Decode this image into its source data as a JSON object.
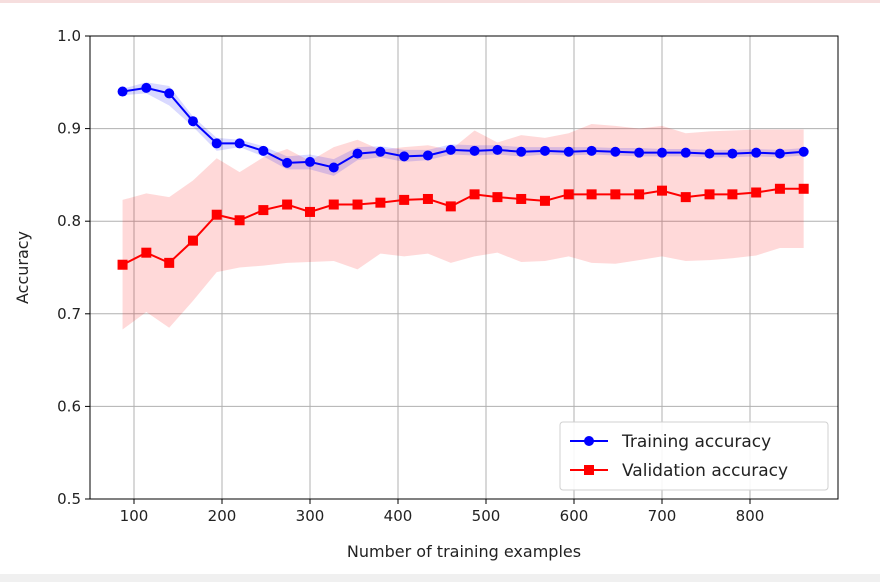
{
  "chart_data": {
    "type": "line",
    "title": "",
    "xlabel": "Number of training examples",
    "ylabel": "Accuracy",
    "xlim": [
      50,
      900
    ],
    "ylim": [
      0.5,
      1.0
    ],
    "xticks": [
      100,
      200,
      300,
      400,
      500,
      600,
      700,
      800
    ],
    "yticks": [
      0.5,
      0.6,
      0.7,
      0.8,
      0.9,
      1.0
    ],
    "xtick_labels": [
      "100",
      "200",
      "300",
      "400",
      "500",
      "600",
      "700",
      "800"
    ],
    "ytick_labels": [
      "0.5",
      "0.6",
      "0.7",
      "0.8",
      "0.9",
      "1.0"
    ],
    "grid": true,
    "legend_position": "lower-right",
    "x": [
      87,
      114,
      140,
      167,
      194,
      220,
      247,
      274,
      300,
      327,
      354,
      380,
      407,
      434,
      460,
      487,
      513,
      540,
      567,
      594,
      620,
      647,
      674,
      700,
      727,
      754,
      780,
      807,
      834,
      861
    ],
    "series": [
      {
        "name": "Training accuracy",
        "color": "#0000ff",
        "marker": "circle",
        "values": [
          0.94,
          0.944,
          0.938,
          0.908,
          0.884,
          0.884,
          0.876,
          0.863,
          0.864,
          0.858,
          0.873,
          0.875,
          0.87,
          0.871,
          0.877,
          0.876,
          0.877,
          0.875,
          0.876,
          0.875,
          0.876,
          0.875,
          0.874,
          0.874,
          0.874,
          0.873,
          0.873,
          0.874,
          0.873,
          0.875
        ],
        "band_upper": [
          0.943,
          0.95,
          0.946,
          0.913,
          0.89,
          0.888,
          0.881,
          0.87,
          0.872,
          0.867,
          0.88,
          0.881,
          0.877,
          0.877,
          0.883,
          0.882,
          0.882,
          0.88,
          0.88,
          0.88,
          0.88,
          0.879,
          0.879,
          0.878,
          0.878,
          0.877,
          0.877,
          0.878,
          0.877,
          0.879
        ],
        "band_lower": [
          0.936,
          0.938,
          0.925,
          0.902,
          0.876,
          0.88,
          0.87,
          0.856,
          0.856,
          0.849,
          0.866,
          0.869,
          0.864,
          0.866,
          0.872,
          0.871,
          0.872,
          0.87,
          0.872,
          0.871,
          0.872,
          0.871,
          0.87,
          0.87,
          0.87,
          0.869,
          0.869,
          0.87,
          0.869,
          0.871
        ]
      },
      {
        "name": "Validation accuracy",
        "color": "#ff0000",
        "marker": "square",
        "values": [
          0.753,
          0.766,
          0.755,
          0.779,
          0.807,
          0.801,
          0.812,
          0.818,
          0.81,
          0.818,
          0.818,
          0.82,
          0.823,
          0.824,
          0.816,
          0.829,
          0.826,
          0.824,
          0.822,
          0.829,
          0.829,
          0.829,
          0.829,
          0.833,
          0.826,
          0.829,
          0.829,
          0.831,
          0.835,
          0.835
        ],
        "band_upper": [
          0.823,
          0.83,
          0.826,
          0.844,
          0.868,
          0.853,
          0.869,
          0.878,
          0.865,
          0.88,
          0.888,
          0.877,
          0.88,
          0.882,
          0.877,
          0.898,
          0.885,
          0.893,
          0.89,
          0.895,
          0.905,
          0.903,
          0.9,
          0.903,
          0.895,
          0.897,
          0.898,
          0.899,
          0.899,
          0.899
        ],
        "band_lower": [
          0.683,
          0.702,
          0.685,
          0.714,
          0.745,
          0.75,
          0.752,
          0.755,
          0.756,
          0.757,
          0.748,
          0.765,
          0.762,
          0.765,
          0.755,
          0.762,
          0.766,
          0.756,
          0.757,
          0.762,
          0.755,
          0.754,
          0.758,
          0.762,
          0.757,
          0.758,
          0.76,
          0.763,
          0.771,
          0.771
        ]
      }
    ]
  }
}
